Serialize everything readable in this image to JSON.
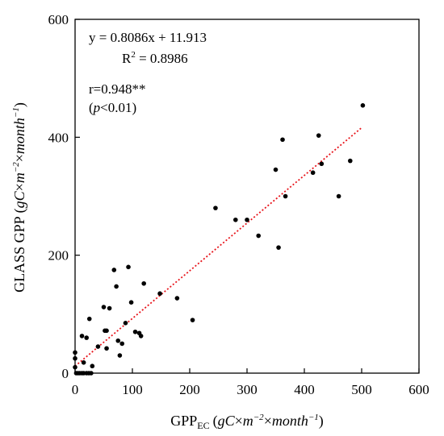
{
  "chart_data": {
    "type": "scatter",
    "xlabel": {
      "main": "GPP",
      "sub": "EC",
      "unit_pre": "(",
      "unit_g": "gC",
      "unit_mid": "×",
      "unit_m": "m",
      "unit_m_exp": "−2",
      "unit_month": "month",
      "unit_month_exp": "−1",
      "unit_post": ")"
    },
    "ylabel": {
      "main": "GLASS GPP",
      "unit_pre": "(",
      "unit_g": "gC",
      "unit_mid": "×",
      "unit_m": "m",
      "unit_m_exp": "−2",
      "unit_month": "month",
      "unit_month_exp": "−1",
      "unit_post": ")"
    },
    "xlim": [
      0,
      600
    ],
    "ylim": [
      0,
      600
    ],
    "x_ticks": [
      "0",
      "100",
      "200",
      "300",
      "400",
      "500",
      "600"
    ],
    "y_ticks": [
      "0",
      "200",
      "400",
      "600"
    ],
    "y_tick_values": [
      0,
      200,
      400,
      600
    ],
    "x_tick_values": [
      0,
      100,
      200,
      300,
      400,
      500,
      600
    ],
    "grid": false,
    "marker_color": "#000000",
    "fit_line": {
      "slope": 0.8086,
      "intercept": 11.913,
      "x_range": [
        0,
        500
      ],
      "color": "#e8141b",
      "style": "dotted"
    },
    "annotations": {
      "equation": "y = 0.8086x + 11.913",
      "r2_label": "R",
      "r2_exp": "2",
      "r2_value": " = 0.8986",
      "r_text": "r=0.948**",
      "p_open": "(",
      "p_italic": "p",
      "p_rest": "<0.01)"
    },
    "points": [
      [
        0,
        35
      ],
      [
        0,
        25
      ],
      [
        0,
        10
      ],
      [
        2,
        0
      ],
      [
        5,
        0
      ],
      [
        8,
        0
      ],
      [
        12,
        0
      ],
      [
        15,
        0
      ],
      [
        20,
        0
      ],
      [
        24,
        0
      ],
      [
        28,
        0
      ],
      [
        12,
        63
      ],
      [
        15,
        18
      ],
      [
        20,
        60
      ],
      [
        25,
        92
      ],
      [
        30,
        12
      ],
      [
        40,
        45
      ],
      [
        50,
        112
      ],
      [
        52,
        72
      ],
      [
        55,
        72
      ],
      [
        55,
        42
      ],
      [
        60,
        110
      ],
      [
        68,
        175
      ],
      [
        72,
        147
      ],
      [
        75,
        55
      ],
      [
        78,
        30
      ],
      [
        82,
        50
      ],
      [
        88,
        85
      ],
      [
        93,
        180
      ],
      [
        98,
        120
      ],
      [
        105,
        70
      ],
      [
        112,
        68
      ],
      [
        115,
        63
      ],
      [
        120,
        152
      ],
      [
        148,
        135
      ],
      [
        178,
        127
      ],
      [
        205,
        90
      ],
      [
        245,
        280
      ],
      [
        280,
        260
      ],
      [
        300,
        260
      ],
      [
        320,
        233
      ],
      [
        350,
        345
      ],
      [
        355,
        213
      ],
      [
        362,
        396
      ],
      [
        367,
        300
      ],
      [
        415,
        340
      ],
      [
        425,
        403
      ],
      [
        430,
        355
      ],
      [
        460,
        300
      ],
      [
        480,
        360
      ],
      [
        502,
        454
      ]
    ]
  }
}
